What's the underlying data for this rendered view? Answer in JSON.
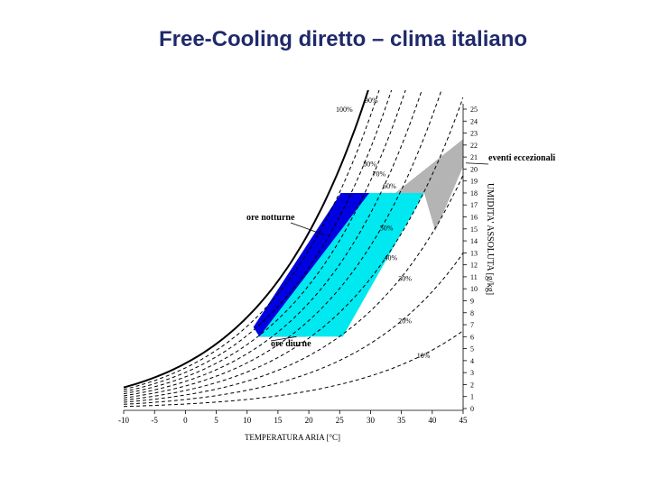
{
  "slide": {
    "title": "Free-Cooling diretto – clima italiano"
  },
  "chart_data": {
    "type": "psychrometric",
    "title": "",
    "xlabel": "TEMPERATURA ARIA   [°C]",
    "ylabel": "UMIDITA' ASSOLUTA [g/kg]",
    "x_ticks": [
      -10,
      -5,
      0,
      5,
      10,
      15,
      20,
      25,
      30,
      35,
      40,
      45
    ],
    "y_ticks": [
      0,
      1,
      2,
      3,
      4,
      5,
      6,
      7,
      8,
      9,
      10,
      11,
      12,
      13,
      14,
      15,
      16,
      17,
      18,
      19,
      20,
      21,
      22,
      23,
      24,
      25
    ],
    "xlim": [
      -10,
      45
    ],
    "ylim": [
      0,
      25
    ],
    "grid": false,
    "rh_curves": [
      {
        "label": "100%",
        "rh": 100
      },
      {
        "label": "90%",
        "rh": 90
      },
      {
        "label": "80%",
        "rh": 80
      },
      {
        "label": "70%",
        "rh": 70
      },
      {
        "label": "60%",
        "rh": 60
      },
      {
        "label": "50%",
        "rh": 50
      },
      {
        "label": "40%",
        "rh": 40
      },
      {
        "label": "30%",
        "rh": 30
      },
      {
        "label": "20%",
        "rh": 20
      },
      {
        "label": "10%",
        "rh": 10
      }
    ],
    "regions": [
      {
        "name": "ore notturne",
        "color": "#0000e0",
        "points": [
          [
            11,
            6.8
          ],
          [
            12,
            6.0
          ],
          [
            19.5,
            6.0
          ],
          [
            29.8,
            18.0
          ],
          [
            25.2,
            18.0
          ]
        ]
      },
      {
        "name": "ore diurne",
        "color": "#00e8f0",
        "points": [
          [
            12,
            6.0
          ],
          [
            25.5,
            6.0
          ],
          [
            38.7,
            18.0
          ],
          [
            29.8,
            18.0
          ]
        ]
      },
      {
        "name": "eventi eccezionali",
        "color": "#b4b4b4",
        "points": [
          [
            34,
            18.0
          ],
          [
            38.7,
            18.0
          ],
          [
            40.5,
            14.8
          ],
          [
            45,
            20.2
          ],
          [
            45,
            22.5
          ]
        ]
      }
    ],
    "annotations": [
      {
        "text": "ore notturne",
        "target": [
          22.5,
          14.5
        ]
      },
      {
        "text": "ore diurne",
        "target": [
          18,
          6.0
        ]
      },
      {
        "text": "eventi eccezionali",
        "target": [
          45,
          20.5
        ]
      }
    ]
  }
}
